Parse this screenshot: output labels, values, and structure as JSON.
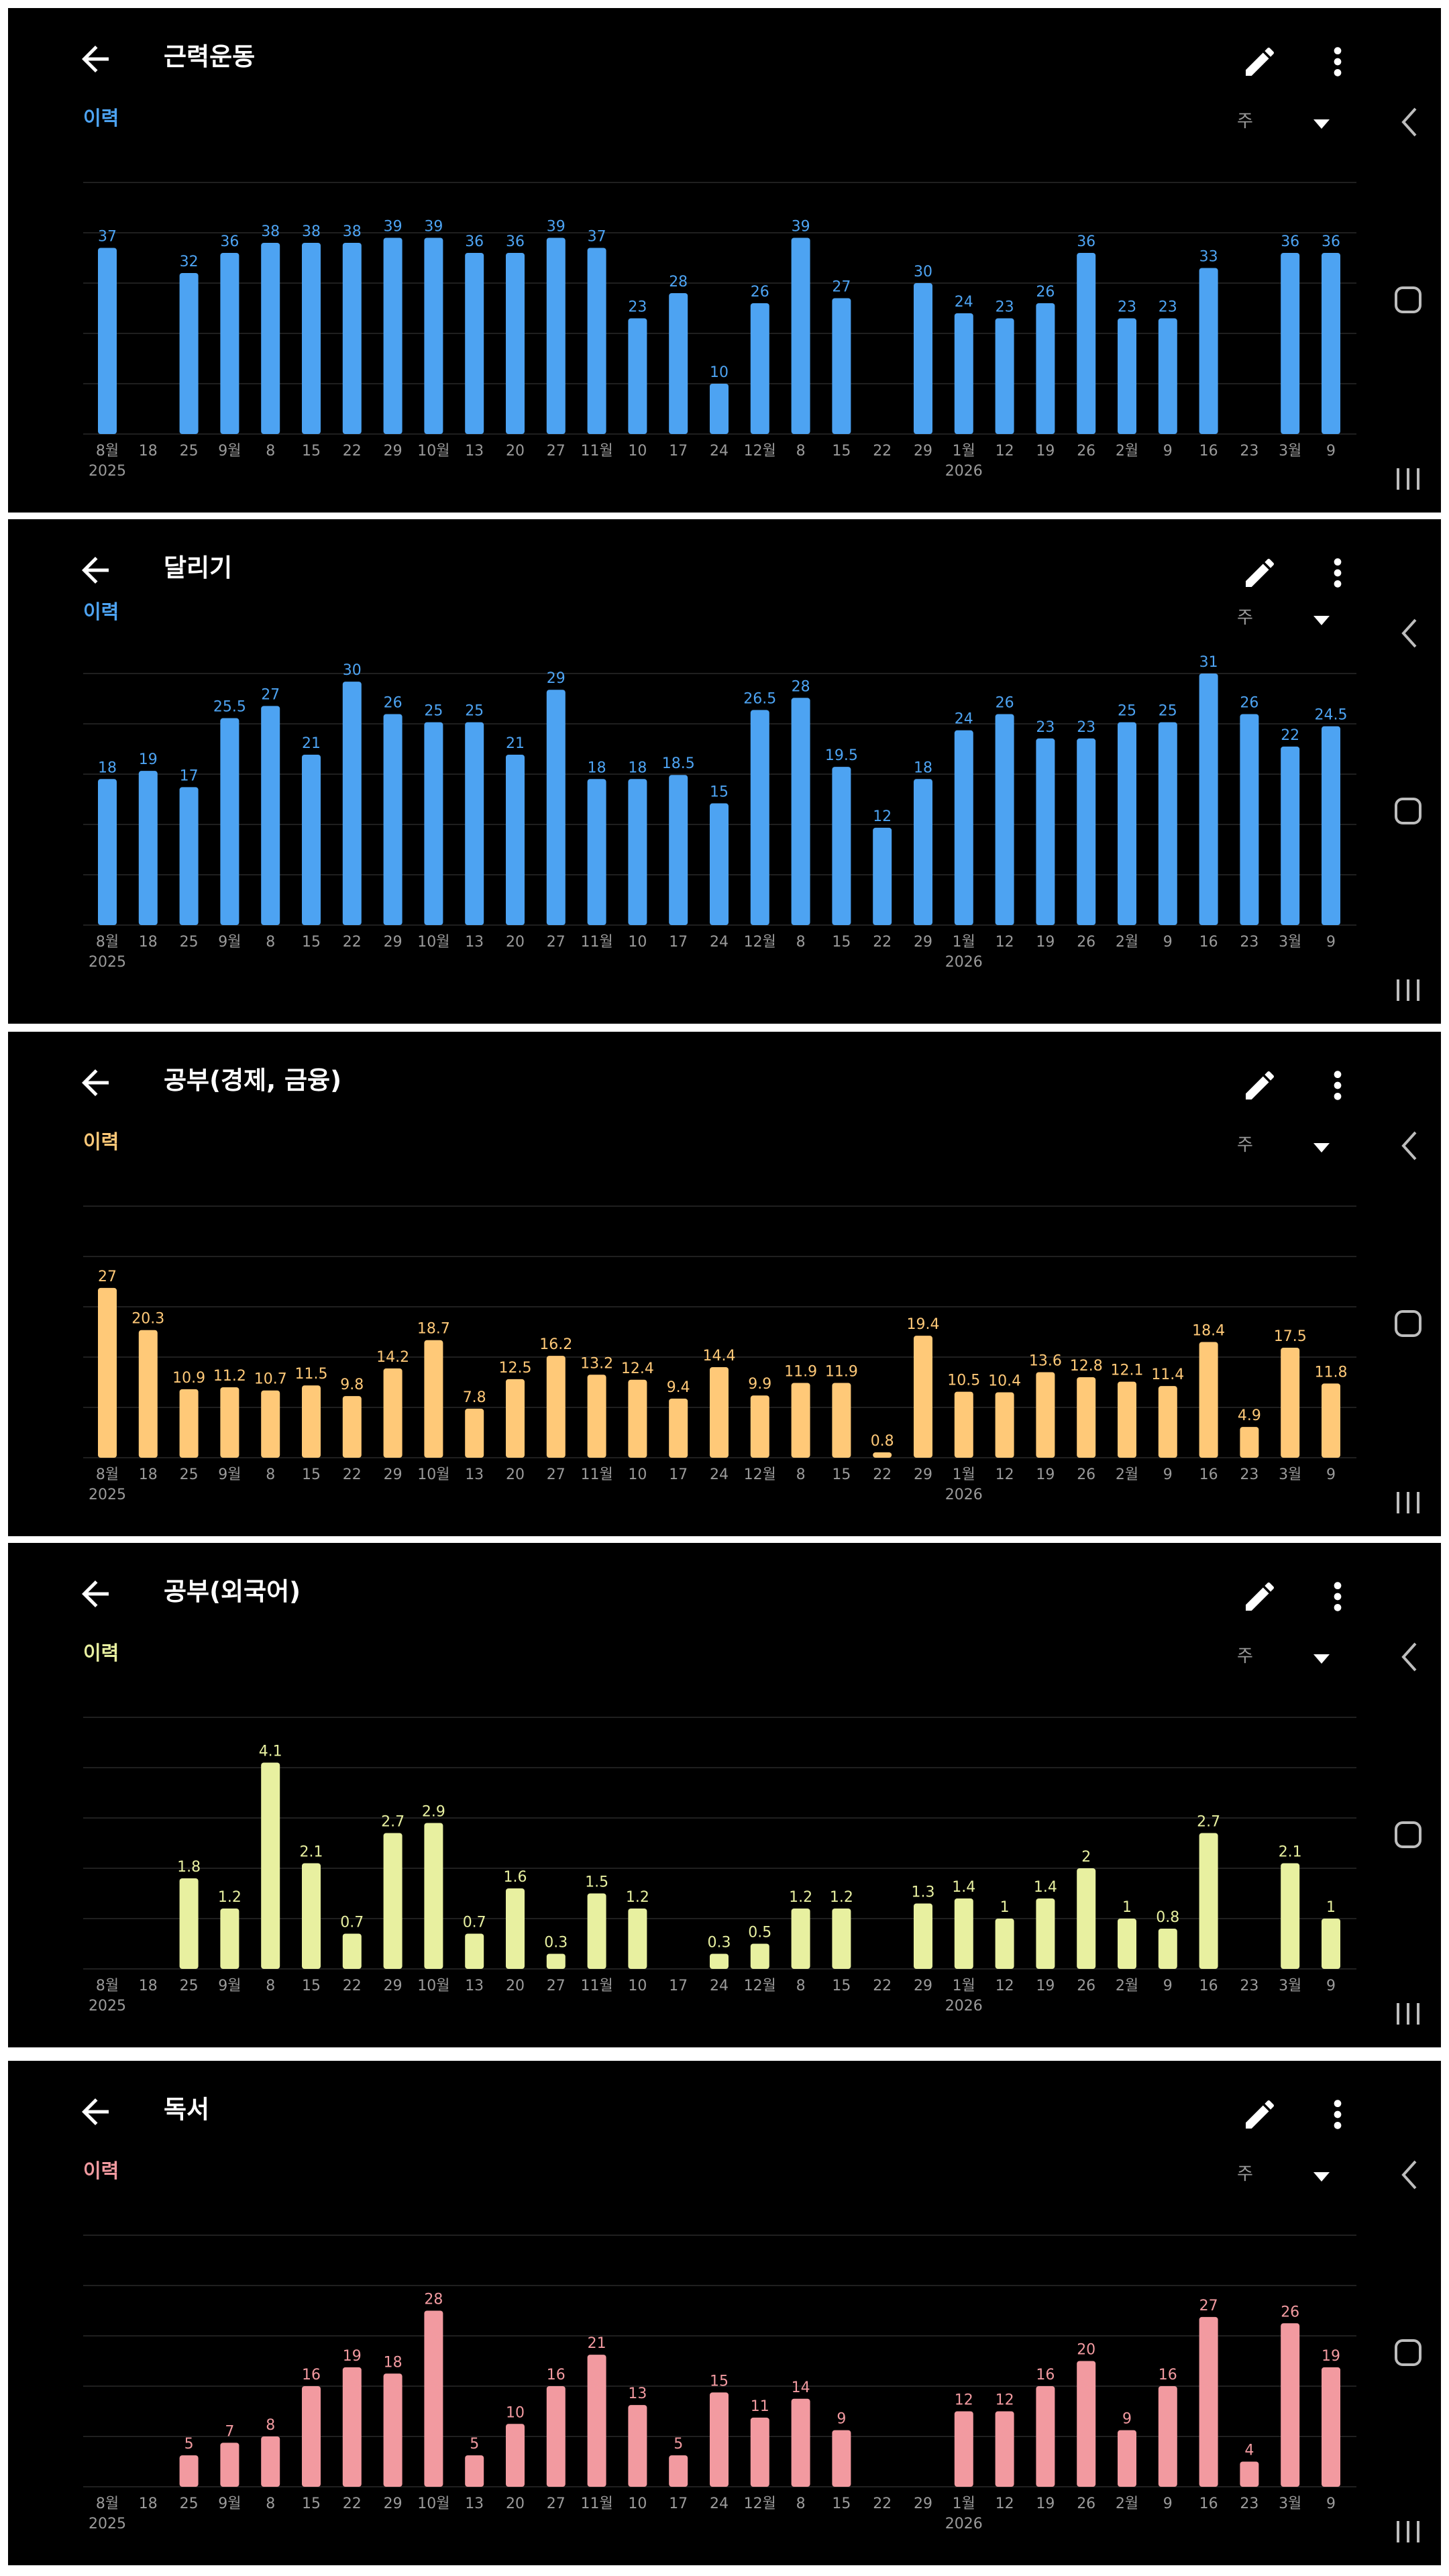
{
  "common": {
    "history_label": "이력",
    "period_label": "주",
    "x_labels": [
      "8월",
      "18",
      "25",
      "9월",
      "8",
      "15",
      "22",
      "29",
      "10월",
      "13",
      "20",
      "27",
      "11월",
      "10",
      "17",
      "24",
      "12월",
      "8",
      "15",
      "22",
      "29",
      "1월",
      "12",
      "19",
      "26",
      "2월",
      "9",
      "16",
      "23",
      "3월",
      "9"
    ],
    "year_labels": [
      {
        "index": 0,
        "text": "2025"
      },
      {
        "index": 21,
        "text": "2026"
      }
    ],
    "label_color": "#9a9a9a",
    "grid_color": "#1f1f1f"
  },
  "panels": [
    {
      "title": "근력운동",
      "accent": "#4da3f2",
      "chart_data": {
        "type": "bar",
        "title": "",
        "xlabel": "",
        "ylabel": "",
        "categories": [
          "8월",
          "18",
          "25",
          "9월",
          "8",
          "15",
          "22",
          "29",
          "10월",
          "13",
          "20",
          "27",
          "11월",
          "10",
          "17",
          "24",
          "12월",
          "8",
          "15",
          "22",
          "29",
          "1월",
          "12",
          "19",
          "26",
          "2월",
          "9",
          "16",
          "23",
          "3월",
          "9"
        ],
        "values": [
          37,
          null,
          32,
          36,
          38,
          38,
          38,
          39,
          39,
          36,
          36,
          39,
          37,
          23,
          28,
          10,
          26,
          39,
          27,
          null,
          30,
          24,
          23,
          26,
          36,
          23,
          23,
          33,
          null,
          36,
          36
        ],
        "labels": [
          "37",
          "",
          "32",
          "36",
          "38",
          "38",
          "38",
          "39",
          "39",
          "36",
          "36",
          "39",
          "37",
          "23",
          "28",
          "10",
          "26",
          "39",
          "27",
          "",
          "30",
          "24",
          "23",
          "26",
          "36",
          "23",
          "23",
          "33",
          "",
          "36",
          "36"
        ],
        "ylim": [
          0,
          50
        ],
        "grid": true
      }
    },
    {
      "title": "달리기",
      "accent": "#4da3f2",
      "chart_data": {
        "type": "bar",
        "title": "",
        "xlabel": "",
        "ylabel": "",
        "categories": [
          "8월",
          "18",
          "25",
          "9월",
          "8",
          "15",
          "22",
          "29",
          "10월",
          "13",
          "20",
          "27",
          "11월",
          "10",
          "17",
          "24",
          "12월",
          "8",
          "15",
          "22",
          "29",
          "1월",
          "12",
          "19",
          "26",
          "2월",
          "9",
          "16",
          "23",
          "3월",
          "9"
        ],
        "values": [
          18,
          19,
          17,
          25.5,
          27,
          21,
          30,
          26,
          25,
          25,
          21,
          29,
          18,
          18,
          18.5,
          15,
          26.5,
          28,
          19.5,
          12,
          18,
          24,
          26,
          23,
          23,
          25,
          25,
          31,
          26,
          22,
          24.5
        ],
        "labels": [
          "18",
          "19",
          "17",
          "25.5",
          "27",
          "21",
          "30",
          "26",
          "25",
          "25",
          "21",
          "29",
          "18",
          "18",
          "18.5",
          "15",
          "26.5",
          "28",
          "19.5",
          "12",
          "18",
          "24",
          "26",
          "23",
          "23",
          "25",
          "25",
          "31",
          "26",
          "22",
          "24.5"
        ],
        "ylim": [
          0,
          31
        ],
        "grid": true
      }
    },
    {
      "title": "공부(경제, 금융)",
      "accent": "#ffc978",
      "chart_data": {
        "type": "bar",
        "title": "",
        "xlabel": "",
        "ylabel": "",
        "categories": [
          "8월",
          "18",
          "25",
          "9월",
          "8",
          "15",
          "22",
          "29",
          "10월",
          "13",
          "20",
          "27",
          "11월",
          "10",
          "17",
          "24",
          "12월",
          "8",
          "15",
          "22",
          "29",
          "1월",
          "12",
          "19",
          "26",
          "2월",
          "9",
          "16",
          "23",
          "3월",
          "9"
        ],
        "values": [
          27,
          20.3,
          10.9,
          11.2,
          10.7,
          11.5,
          9.8,
          14.2,
          18.7,
          7.8,
          12.5,
          16.2,
          13.2,
          12.4,
          9.4,
          14.4,
          9.9,
          11.9,
          11.9,
          0.8,
          19.4,
          10.5,
          10.4,
          13.6,
          12.8,
          12.1,
          11.4,
          18.4,
          4.9,
          17.5,
          11.8
        ],
        "labels": [
          "27",
          "20.3",
          "10.9",
          "11.2",
          "10.7",
          "11.5",
          "9.8",
          "14.2",
          "18.7",
          "7.8",
          "12.5",
          "16.2",
          "13.2",
          "12.4",
          "9.4",
          "14.4",
          "9.9",
          "11.9",
          "11.9",
          "0.8",
          "19.4",
          "10.5",
          "10.4",
          "13.6",
          "12.8",
          "12.1",
          "11.4",
          "18.4",
          "4.9",
          "17.5",
          "11.8"
        ],
        "ylim": [
          0,
          40
        ],
        "grid": true
      }
    },
    {
      "title": "공부(외국어)",
      "accent": "#e8f0a0",
      "chart_data": {
        "type": "bar",
        "title": "",
        "xlabel": "",
        "ylabel": "",
        "categories": [
          "8월",
          "18",
          "25",
          "9월",
          "8",
          "15",
          "22",
          "29",
          "10월",
          "13",
          "20",
          "27",
          "11월",
          "10",
          "17",
          "24",
          "12월",
          "8",
          "15",
          "22",
          "29",
          "1월",
          "12",
          "19",
          "26",
          "2월",
          "9",
          "16",
          "23",
          "3월",
          "9"
        ],
        "values": [
          null,
          null,
          1.8,
          1.2,
          4.1,
          2.1,
          0.7,
          2.7,
          2.9,
          0.7,
          1.6,
          0.3,
          1.5,
          1.2,
          null,
          0.3,
          0.5,
          1.2,
          1.2,
          null,
          1.3,
          1.4,
          1,
          1.4,
          2,
          1,
          0.8,
          2.7,
          null,
          2.1,
          1
        ],
        "labels": [
          "",
          "",
          "1.8",
          "1.2",
          "4.1",
          "2.1",
          "0.7",
          "2.7",
          "2.9",
          "0.7",
          "1.6",
          "0.3",
          "1.5",
          "1.2",
          "",
          "0.3",
          "0.5",
          "1.2",
          "1.2",
          "",
          "1.3",
          "1.4",
          "1",
          "1.4",
          "2",
          "1",
          "0.8",
          "2.7",
          "",
          "2.1",
          "1"
        ],
        "ylim": [
          0,
          5
        ],
        "grid": true
      }
    },
    {
      "title": "독서",
      "accent": "#f29aa0",
      "chart_data": {
        "type": "bar",
        "title": "",
        "xlabel": "",
        "ylabel": "",
        "categories": [
          "8월",
          "18",
          "25",
          "9월",
          "8",
          "15",
          "22",
          "29",
          "10월",
          "13",
          "20",
          "27",
          "11월",
          "10",
          "17",
          "24",
          "12월",
          "8",
          "15",
          "22",
          "29",
          "1월",
          "12",
          "19",
          "26",
          "2월",
          "9",
          "16",
          "23",
          "3월",
          "9"
        ],
        "values": [
          null,
          null,
          5,
          7,
          8,
          16,
          19,
          18,
          28,
          5,
          10,
          16,
          21,
          13,
          5,
          15,
          11,
          14,
          9,
          null,
          null,
          12,
          12,
          16,
          20,
          9,
          16,
          27,
          4,
          26,
          19
        ],
        "labels": [
          "",
          "",
          "5",
          "7",
          "8",
          "16",
          "19",
          "18",
          "28",
          "5",
          "10",
          "16",
          "21",
          "13",
          "5",
          "15",
          "11",
          "14",
          "9",
          "",
          "",
          "12",
          "12",
          "16",
          "20",
          "9",
          "16",
          "27",
          "4",
          "26",
          "19"
        ],
        "ylim": [
          0,
          40
        ],
        "grid": true
      }
    }
  ]
}
